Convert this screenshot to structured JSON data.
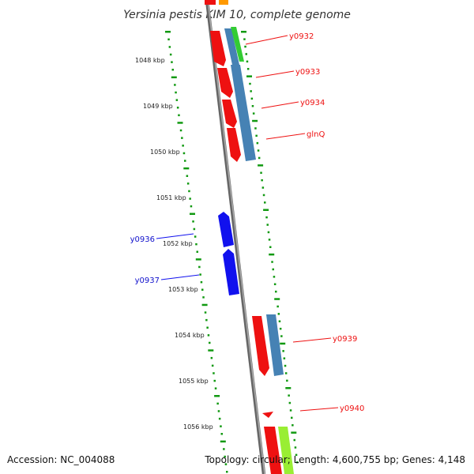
{
  "title": "Yersinia pestis KIM 10, complete genome",
  "footer": {
    "accession": "Accession: NC_004088",
    "topology": "Topology: circular; Length: 4,600,755 bp; Genes: 4,148"
  },
  "ticks": [
    "1048 kbp",
    "1049 kbp",
    "1050 kbp",
    "1051 kbp",
    "1052 kbp",
    "1053 kbp",
    "1054 kbp",
    "1055 kbp",
    "1056 kbp"
  ],
  "gene_labels_right": [
    "y0932",
    "y0933",
    "y0934",
    "glnQ",
    "y0939",
    "y0940"
  ],
  "gene_labels_left": [
    "y0936",
    "y0937"
  ],
  "colors": {
    "forward_cds": "#ee1111",
    "reverse_cds": "#1111ee",
    "cog_blue": "#4682b4",
    "cog_green": "#33cc33",
    "cog_lime": "#99ee33",
    "cog_orange": "#ff9900",
    "tick_green": "#119911",
    "backbone": "#888888"
  }
}
